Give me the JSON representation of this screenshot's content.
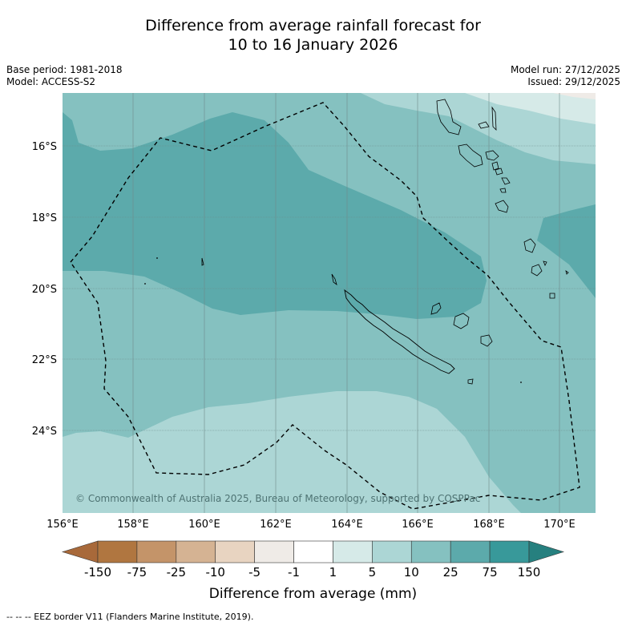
{
  "title": {
    "line1": "Difference from average rainfall forecast for",
    "line2": "10 to 16 January 2026"
  },
  "meta": {
    "base_period": "Base period: 1981-2018",
    "model": "Model: ACCESS-S2",
    "model_run": "Model run: 27/12/2025",
    "issued": "Issued: 29/12/2025"
  },
  "map": {
    "lon_labels": [
      "156°E",
      "158°E",
      "160°E",
      "162°E",
      "164°E",
      "166°E",
      "168°E",
      "170°E"
    ],
    "lat_labels": [
      "16°S",
      "18°S",
      "20°S",
      "22°S",
      "24°S"
    ],
    "copyright": "© Commonwealth of Australia 2025, Bureau of Meteorology, supported by COSPPac"
  },
  "colorbar": {
    "ticks": [
      "-150",
      "-75",
      "-25",
      "-10",
      "-5",
      "-1",
      "1",
      "5",
      "10",
      "25",
      "75",
      "150"
    ],
    "colors": [
      "#a8693a",
      "#b07640",
      "#c49469",
      "#d5b393",
      "#e8d4c1",
      "#efebe7",
      "#ffffff",
      "#d6eae8",
      "#acd6d5",
      "#85c1c0",
      "#5caaab",
      "#38999a",
      "#26807f"
    ],
    "label": "Difference from average (mm)"
  },
  "footnote": "--  --  -- EEZ border V11 (Flanders Marine Institute, 2019)."
}
